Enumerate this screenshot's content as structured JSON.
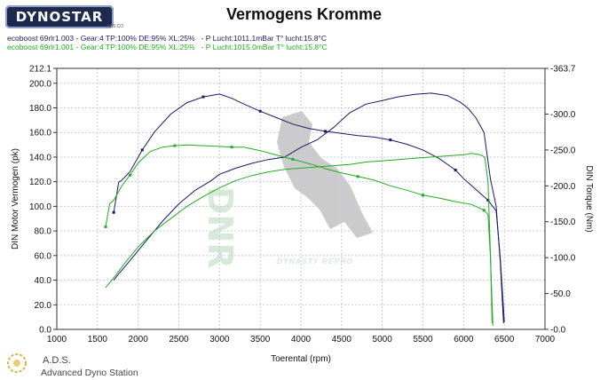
{
  "header": {
    "logo_text": "DYNOSTAR",
    "logo_sub": "ADS.CO",
    "title": "Vermogens Kromme"
  },
  "runs": [
    {
      "label": "ecoboost 69rlr1.003 - Gear:4 TP:100% DE:95% XL:25%   - P Lucht:1011.1mBar T° lucht:15.8°C",
      "color": "#1a1a66"
    },
    {
      "label": "ecoboost 69rlr1.001 - Gear:4 TP:100% DE:95% XL:25%   - P Lucht:1015.0mBar T° lucht:15.8°C",
      "color": "#22aa22"
    }
  ],
  "footer": {
    "abbr": "A.D.S.",
    "name": "Advanced Dyno Station"
  },
  "watermark": {
    "text": "DYNASTY REPRO"
  },
  "chart_data": {
    "type": "line",
    "xlabel": "Toerental (rpm)",
    "ylabel": "DIN Motor Vermogen (pk)",
    "y2label": "DIN Torque (Nm)",
    "xlim": [
      1000,
      7000
    ],
    "ylim": [
      0,
      212.1
    ],
    "y2lim": [
      0,
      363.7
    ],
    "x_ticks": [
      1000,
      1500,
      2000,
      2500,
      3000,
      3500,
      4000,
      4500,
      5000,
      5500,
      6000,
      6500,
      7000
    ],
    "y_ticks": [
      "0.0",
      "20.0",
      "40.0",
      "60.0",
      "80.0",
      "100.0",
      "120.0",
      "140.0",
      "160.0",
      "180.0",
      "200.0",
      "212.1"
    ],
    "y_tick_values": [
      0,
      20,
      40,
      60,
      80,
      100,
      120,
      140,
      160,
      180,
      200,
      212.1
    ],
    "y2_ticks": [
      "0.0",
      "50.0",
      "100.0",
      "150.0",
      "200.0",
      "250.0",
      "300.0",
      "363.7"
    ],
    "y2_tick_values": [
      0,
      50,
      100,
      150,
      200,
      250,
      300,
      363.7
    ],
    "grid": true,
    "series": [
      {
        "color": "#1a1a66",
        "axis": "power",
        "x": [
          1700,
          1760,
          1850,
          1950,
          2100,
          2300,
          2500,
          2700,
          2900,
          3000,
          3200,
          3400,
          3600,
          3800,
          4000,
          4200,
          4400,
          4600,
          4800,
          5000,
          5200,
          5400,
          5600,
          5800,
          5950,
          6050,
          6150,
          6250,
          6330,
          6400,
          6450,
          6490
        ],
        "values": [
          40,
          45,
          52,
          60,
          72,
          88,
          102,
          113,
          121,
          126,
          131,
          135,
          138,
          140,
          148,
          154,
          164,
          176,
          183,
          186,
          189,
          191,
          192,
          190,
          185,
          180,
          172,
          160,
          122,
          100,
          55,
          5
        ]
      },
      {
        "color": "#1a1a66",
        "axis": "torque",
        "markers": true,
        "x": [
          1700,
          1760,
          1800,
          1900,
          2050,
          2200,
          2400,
          2600,
          2800,
          3000,
          3150,
          3300,
          3500,
          3700,
          3900,
          4100,
          4300,
          4500,
          4700,
          4900,
          5100,
          5300,
          5500,
          5700,
          5900,
          6000,
          6100,
          6200,
          6300,
          6400,
          6450,
          6500
        ],
        "values": [
          163,
          205,
          208,
          220,
          250,
          275,
          300,
          316,
          324,
          328,
          322,
          314,
          304,
          295,
          286,
          280,
          276,
          273,
          270,
          268,
          264,
          258,
          250,
          238,
          222,
          210,
          200,
          190,
          180,
          165,
          100,
          10
        ]
      },
      {
        "color": "#22aa22",
        "axis": "power",
        "x": [
          1600,
          1700,
          1850,
          2000,
          2200,
          2400,
          2600,
          2800,
          3000,
          3200,
          3400,
          3600,
          3800,
          4000,
          4200,
          4400,
          4600,
          4800,
          5000,
          5200,
          5400,
          5600,
          5800,
          6000,
          6100,
          6200,
          6260,
          6300,
          6330,
          6350
        ],
        "values": [
          34,
          42,
          55,
          67,
          80,
          90,
          100,
          108,
          115,
          121,
          125,
          128,
          130,
          131,
          132,
          133,
          134,
          136,
          137,
          138,
          139,
          140,
          141,
          142,
          143,
          142,
          140,
          120,
          60,
          5
        ]
      },
      {
        "color": "#22aa22",
        "axis": "torque",
        "markers": true,
        "x": [
          1600,
          1650,
          1700,
          1800,
          1900,
          2000,
          2150,
          2300,
          2450,
          2600,
          2800,
          3000,
          3150,
          3300,
          3500,
          3700,
          3900,
          4100,
          4300,
          4500,
          4700,
          4900,
          5100,
          5300,
          5500,
          5700,
          5900,
          6100,
          6250,
          6300,
          6330,
          6360
        ],
        "values": [
          143,
          175,
          180,
          200,
          215,
          232,
          248,
          254,
          256,
          257,
          256,
          255,
          254,
          254,
          249,
          243,
          237,
          231,
          224,
          218,
          213,
          208,
          200,
          194,
          187,
          183,
          178,
          174,
          166,
          160,
          100,
          5
        ]
      }
    ]
  }
}
